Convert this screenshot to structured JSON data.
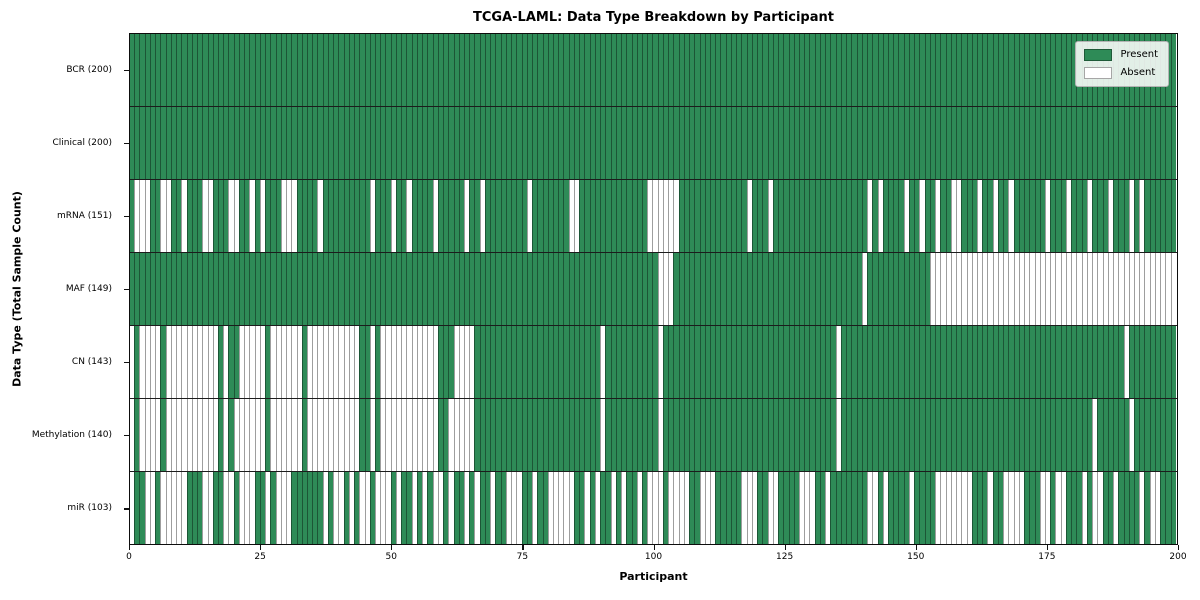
{
  "title": "TCGA-LAML: Data Type Breakdown by Participant",
  "xlabel": "Participant",
  "ylabel": "Data Type (Total Sample Count)",
  "x_ticks": [
    0,
    25,
    50,
    75,
    100,
    125,
    150,
    175,
    200
  ],
  "legend": {
    "position": "upper right",
    "items": [
      {
        "label": "Present",
        "color": "#2e8b57"
      },
      {
        "label": "Absent",
        "color": "#ffffff"
      }
    ]
  },
  "colors": {
    "present": "#2e8b57",
    "absent": "#ffffff",
    "cell_edge": "rgba(0,0,0,0.38)",
    "row_divider": "#1c1c1c",
    "axis_border": "#0d0d0d"
  },
  "chart_data": {
    "type": "heatmap",
    "x_axis": {
      "label": "Participant",
      "min": 0,
      "max": 200,
      "ticks": [
        0,
        25,
        50,
        75,
        100,
        125,
        150,
        175,
        200
      ]
    },
    "y_axis_label": "Data Type (Total Sample Count)",
    "n_participants": 200,
    "cell_states": {
      "present": "green",
      "absent": "white"
    },
    "grid": false,
    "rows": [
      {
        "label": "BCR (200)",
        "data_type": "BCR",
        "present_count": 200,
        "absent_ranges": []
      },
      {
        "label": "Clinical (200)",
        "data_type": "Clinical",
        "present_count": 200,
        "absent_ranges": []
      },
      {
        "label": "mRNA (151)",
        "data_type": "mRNA",
        "present_count": 151,
        "absent_ranges": [
          [
            1,
            3
          ],
          [
            6,
            7
          ],
          [
            10,
            10
          ],
          [
            14,
            15
          ],
          [
            19,
            20
          ],
          [
            23,
            23
          ],
          [
            25,
            25
          ],
          [
            29,
            31
          ],
          [
            36,
            36
          ],
          [
            46,
            46
          ],
          [
            50,
            50
          ],
          [
            53,
            53
          ],
          [
            58,
            58
          ],
          [
            64,
            64
          ],
          [
            67,
            67
          ],
          [
            76,
            76
          ],
          [
            84,
            85
          ],
          [
            99,
            104
          ],
          [
            118,
            118
          ],
          [
            122,
            122
          ],
          [
            141,
            141
          ],
          [
            143,
            143
          ],
          [
            148,
            148
          ],
          [
            151,
            151
          ],
          [
            154,
            154
          ],
          [
            157,
            158
          ],
          [
            162,
            162
          ],
          [
            165,
            165
          ],
          [
            168,
            168
          ],
          [
            175,
            175
          ],
          [
            179,
            179
          ],
          [
            183,
            183
          ],
          [
            187,
            187
          ],
          [
            191,
            191
          ],
          [
            193,
            193
          ]
        ]
      },
      {
        "label": "MAF (149)",
        "data_type": "MAF",
        "present_count": 149,
        "absent_ranges": [
          [
            101,
            103
          ],
          [
            140,
            140
          ],
          [
            153,
            199
          ]
        ]
      },
      {
        "label": "CN (143)",
        "data_type": "CN",
        "present_count": 143,
        "absent_ranges": [
          [
            0,
            0
          ],
          [
            2,
            5
          ],
          [
            7,
            16
          ],
          [
            18,
            18
          ],
          [
            21,
            25
          ],
          [
            27,
            32
          ],
          [
            34,
            43
          ],
          [
            46,
            46
          ],
          [
            48,
            58
          ],
          [
            62,
            65
          ],
          [
            90,
            90
          ],
          [
            101,
            101
          ],
          [
            135,
            135
          ],
          [
            190,
            190
          ]
        ]
      },
      {
        "label": "Methylation (140)",
        "data_type": "Methylation",
        "present_count": 140,
        "absent_ranges": [
          [
            0,
            0
          ],
          [
            2,
            5
          ],
          [
            7,
            16
          ],
          [
            18,
            18
          ],
          [
            20,
            25
          ],
          [
            27,
            32
          ],
          [
            34,
            43
          ],
          [
            46,
            46
          ],
          [
            48,
            58
          ],
          [
            61,
            65
          ],
          [
            90,
            90
          ],
          [
            101,
            101
          ],
          [
            135,
            135
          ],
          [
            184,
            184
          ],
          [
            191,
            191
          ]
        ]
      },
      {
        "label": "miR (103)",
        "data_type": "miR",
        "present_count": 103,
        "absent_ranges": [
          [
            0,
            0
          ],
          [
            3,
            4
          ],
          [
            6,
            10
          ],
          [
            14,
            15
          ],
          [
            18,
            19
          ],
          [
            21,
            23
          ],
          [
            26,
            26
          ],
          [
            28,
            30
          ],
          [
            37,
            37
          ],
          [
            39,
            40
          ],
          [
            42,
            42
          ],
          [
            44,
            45
          ],
          [
            47,
            49
          ],
          [
            51,
            51
          ],
          [
            54,
            54
          ],
          [
            56,
            56
          ],
          [
            58,
            59
          ],
          [
            61,
            61
          ],
          [
            64,
            64
          ],
          [
            66,
            66
          ],
          [
            69,
            69
          ],
          [
            72,
            74
          ],
          [
            77,
            77
          ],
          [
            80,
            84
          ],
          [
            87,
            87
          ],
          [
            89,
            89
          ],
          [
            92,
            92
          ],
          [
            94,
            94
          ],
          [
            97,
            97
          ],
          [
            99,
            101
          ],
          [
            103,
            106
          ],
          [
            109,
            111
          ],
          [
            117,
            119
          ],
          [
            122,
            123
          ],
          [
            128,
            130
          ],
          [
            133,
            133
          ],
          [
            141,
            142
          ],
          [
            144,
            144
          ],
          [
            149,
            149
          ],
          [
            154,
            160
          ],
          [
            164,
            164
          ],
          [
            167,
            170
          ],
          [
            174,
            175
          ],
          [
            177,
            178
          ],
          [
            182,
            182
          ],
          [
            184,
            185
          ],
          [
            188,
            188
          ],
          [
            193,
            193
          ],
          [
            195,
            196
          ]
        ]
      }
    ]
  }
}
